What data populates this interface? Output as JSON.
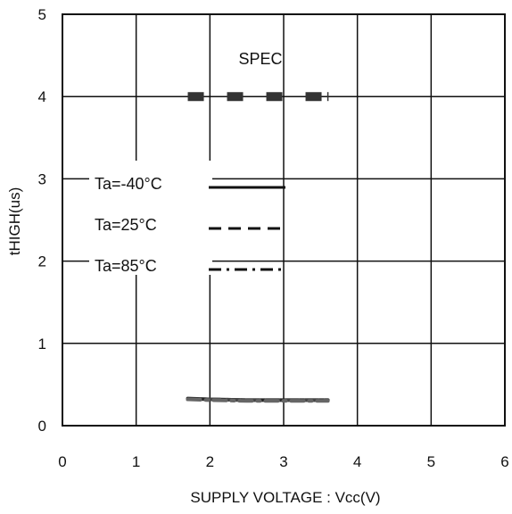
{
  "chart_data": {
    "type": "line",
    "xlabel": "SUPPLY VOLTAGE : Vcc(V)",
    "ylabel": "tHIGH(us)",
    "xlim": [
      0,
      6
    ],
    "ylim": [
      0,
      5
    ],
    "xticks": [
      "0",
      "1",
      "2",
      "3",
      "4",
      "5",
      "6"
    ],
    "yticks": [
      "0",
      "1",
      "2",
      "3",
      "4",
      "5"
    ],
    "grid": true,
    "legend_placement": "upper-left",
    "spec": {
      "label": "SPEC",
      "value": 4.0,
      "x_start": 1.7,
      "x_end": 3.6,
      "color": "#333333"
    },
    "series": [
      {
        "name": "Ta=-40°C",
        "style": "solid",
        "color": "#222222",
        "x": [
          1.7,
          2.0,
          2.5,
          3.0,
          3.6
        ],
        "y": [
          0.33,
          0.32,
          0.31,
          0.31,
          0.31
        ]
      },
      {
        "name": "Ta=25°C",
        "style": "dashed",
        "color": "#444444",
        "x": [
          1.7,
          2.0,
          2.5,
          3.0,
          3.6
        ],
        "y": [
          0.32,
          0.32,
          0.31,
          0.31,
          0.31
        ]
      },
      {
        "name": "Ta=85°C",
        "style": "dashdot",
        "color": "#666666",
        "x": [
          1.7,
          2.0,
          2.5,
          3.0,
          3.6
        ],
        "y": [
          0.32,
          0.31,
          0.3,
          0.3,
          0.3
        ]
      }
    ]
  }
}
